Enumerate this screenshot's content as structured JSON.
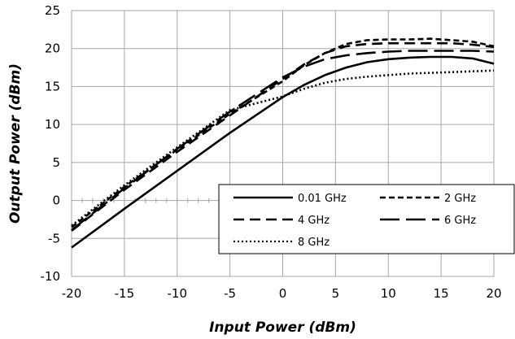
{
  "chart_data": {
    "type": "line",
    "xlabel": "Input Power (dBm)",
    "ylabel": "Output Power (dBm)",
    "xlim": [
      -20,
      20
    ],
    "ylim": [
      -10,
      25
    ],
    "xticks": [
      -20,
      -15,
      -10,
      -5,
      0,
      5,
      10,
      15,
      20
    ],
    "yticks": [
      -10,
      -5,
      0,
      5,
      10,
      15,
      20,
      25
    ],
    "grid": true,
    "legend_position": "lower-right",
    "legend_columns": 2,
    "series": [
      {
        "name": "0.01 GHz",
        "style": "solid",
        "x": [
          -20,
          -15,
          -10,
          -5,
          0,
          2,
          4,
          6,
          8,
          10,
          12,
          14,
          16,
          18,
          20
        ],
        "y": [
          -6.2,
          -1.1,
          3.9,
          8.9,
          13.6,
          15.2,
          16.5,
          17.5,
          18.2,
          18.6,
          18.8,
          18.9,
          18.9,
          18.7,
          18.0
        ]
      },
      {
        "name": "2 GHz",
        "style": "short-dash",
        "x": [
          -20,
          -15,
          -10,
          -5,
          0,
          2,
          4,
          6,
          8,
          10,
          12,
          14,
          16,
          18,
          20
        ],
        "y": [
          -3.5,
          1.8,
          6.7,
          11.4,
          15.7,
          17.8,
          19.4,
          20.6,
          21.1,
          21.2,
          21.2,
          21.3,
          21.1,
          20.9,
          20.3
        ]
      },
      {
        "name": "4 GHz",
        "style": "long-dash",
        "x": [
          -20,
          -15,
          -10,
          -5,
          0,
          2,
          4,
          6,
          8,
          10,
          12,
          14,
          16,
          18,
          20
        ],
        "y": [
          -4.0,
          1.4,
          6.4,
          11.2,
          16.0,
          17.9,
          19.4,
          20.3,
          20.6,
          20.7,
          20.7,
          20.7,
          20.7,
          20.5,
          20.2
        ]
      },
      {
        "name": "6 GHz",
        "style": "extra-long-dash",
        "x": [
          -20,
          -15,
          -10,
          -5,
          0,
          2,
          4,
          6,
          8,
          10,
          12,
          14,
          16,
          18,
          20
        ],
        "y": [
          -3.9,
          1.6,
          6.8,
          11.7,
          16.2,
          17.6,
          18.6,
          19.1,
          19.4,
          19.6,
          19.7,
          19.7,
          19.7,
          19.7,
          19.6
        ]
      },
      {
        "name": "8 GHz",
        "style": "dotted",
        "x": [
          -20,
          -15,
          -10,
          -5,
          0,
          2,
          4,
          6,
          8,
          10,
          12,
          14,
          16,
          18,
          20
        ],
        "y": [
          -3.3,
          2.0,
          7.0,
          11.9,
          13.7,
          14.7,
          15.5,
          16.0,
          16.3,
          16.5,
          16.7,
          16.8,
          16.9,
          17.0,
          17.1
        ]
      }
    ]
  }
}
